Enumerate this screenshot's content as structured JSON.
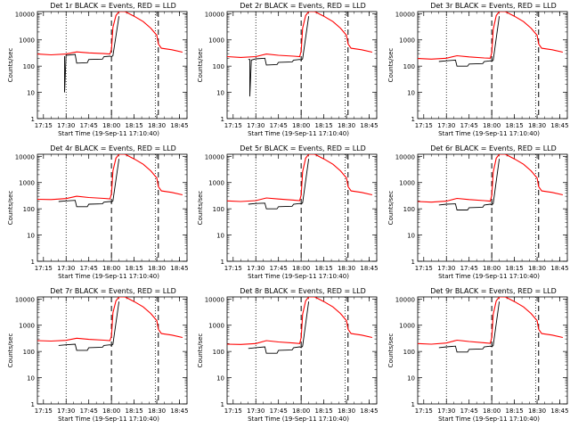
{
  "chart_data": [
    {
      "type": "line",
      "title": "Det 1r BLACK = Events, RED = LLD",
      "xlabel": "Start Time (19-Sep-11 17:10:40)",
      "ylabel": "Counts/sec",
      "yscale": "log",
      "ylim": [
        1,
        12000
      ],
      "xlim": [
        "17:11",
        "18:50"
      ],
      "x_ticks": [
        "17:15",
        "17:30",
        "17:45",
        "18:00",
        "18:15",
        "18:30",
        "18:45"
      ],
      "y_ticks": [
        "1",
        "10",
        "100",
        "1000",
        "10000"
      ],
      "vlines_dotted": [
        "17:30",
        "18:29"
      ],
      "vlines_dashed": [
        "18:00",
        "18:31"
      ],
      "series": [
        {
          "color": "#000000",
          "x": [
            "17:11",
            "17:28",
            "17:29",
            "17:29",
            "17:30",
            "17:36",
            "17:37",
            "17:44",
            "17:45",
            "17:54",
            "17:55",
            "17:59",
            "18:00",
            "18:01",
            "18:05"
          ],
          "y": [
            null,
            null,
            240,
            10,
            260,
            280,
            130,
            135,
            180,
            185,
            230,
            240,
            230,
            250,
            8000
          ]
        },
        {
          "color": "#ff0000",
          "x": [
            "17:11",
            "17:20",
            "17:30",
            "17:37",
            "17:45",
            "17:55",
            "17:59",
            "18:00",
            "18:01",
            "18:03",
            "18:05",
            "18:09",
            "18:15",
            "18:21",
            "18:26",
            "18:30",
            "18:31",
            "18:33",
            "18:40",
            "18:47"
          ],
          "y": [
            290,
            270,
            290,
            350,
            320,
            300,
            290,
            450,
            3000,
            8500,
            12000,
            12000,
            8000,
            5000,
            2800,
            1500,
            700,
            480,
            420,
            340
          ]
        }
      ]
    },
    {
      "type": "line",
      "title": "Det 2r BLACK = Events, RED = LLD",
      "xlabel": "Start Time (19-Sep-11 17:10:40)",
      "ylabel": "Counts/sec",
      "yscale": "log",
      "ylim": [
        1,
        12000
      ],
      "xlim": [
        "17:11",
        "18:50"
      ],
      "x_ticks": [
        "17:15",
        "17:30",
        "17:45",
        "18:00",
        "18:15",
        "18:30",
        "18:45"
      ],
      "y_ticks": [
        "1",
        "10",
        "100",
        "1000",
        "10000"
      ],
      "vlines_dotted": [
        "17:30",
        "18:29"
      ],
      "vlines_dashed": [
        "18:00",
        "18:31"
      ],
      "series": [
        {
          "color": "#000000",
          "x": [
            "17:25",
            "17:26",
            "17:26",
            "17:27",
            "17:30",
            "17:36",
            "17:37",
            "17:44",
            "17:45",
            "17:54",
            "17:55",
            "17:59",
            "18:00",
            "18:01",
            "18:05"
          ],
          "y": [
            180,
            180,
            7,
            170,
            190,
            200,
            110,
            115,
            140,
            145,
            170,
            180,
            170,
            190,
            8000
          ]
        },
        {
          "color": "#ff0000",
          "x": [
            "17:11",
            "17:20",
            "17:30",
            "17:37",
            "17:45",
            "17:55",
            "17:59",
            "18:00",
            "18:01",
            "18:03",
            "18:05",
            "18:09",
            "18:15",
            "18:21",
            "18:26",
            "18:30",
            "18:31",
            "18:33",
            "18:40",
            "18:47"
          ],
          "y": [
            230,
            215,
            230,
            290,
            260,
            240,
            230,
            380,
            2800,
            8500,
            12000,
            12000,
            8000,
            5000,
            2800,
            1500,
            700,
            480,
            420,
            340
          ]
        }
      ]
    },
    {
      "type": "line",
      "title": "Det 3r BLACK = Events, RED = LLD",
      "xlabel": "Start Time (19-Sep-11 17:10:40)",
      "ylabel": "Counts/sec",
      "yscale": "log",
      "ylim": [
        1,
        12000
      ],
      "xlim": [
        "17:11",
        "18:50"
      ],
      "x_ticks": [
        "17:15",
        "17:30",
        "17:45",
        "18:00",
        "18:15",
        "18:30",
        "18:45"
      ],
      "y_ticks": [
        "1",
        "10",
        "100",
        "1000",
        "10000"
      ],
      "vlines_dotted": [
        "17:30",
        "18:29"
      ],
      "vlines_dashed": [
        "18:00",
        "18:31"
      ],
      "series": [
        {
          "color": "#000000",
          "x": [
            "17:25",
            "17:30",
            "17:36",
            "17:37",
            "17:44",
            "17:45",
            "17:54",
            "17:55",
            "17:59",
            "18:00",
            "18:01",
            "18:05"
          ],
          "y": [
            150,
            160,
            170,
            100,
            100,
            120,
            125,
            150,
            160,
            150,
            170,
            8000
          ]
        },
        {
          "color": "#ff0000",
          "x": [
            "17:11",
            "17:20",
            "17:30",
            "17:37",
            "17:45",
            "17:55",
            "17:59",
            "18:00",
            "18:01",
            "18:03",
            "18:05",
            "18:09",
            "18:15",
            "18:21",
            "18:26",
            "18:30",
            "18:31",
            "18:33",
            "18:40",
            "18:47"
          ],
          "y": [
            195,
            185,
            200,
            250,
            225,
            205,
            200,
            330,
            2500,
            8500,
            12000,
            12000,
            8000,
            5000,
            2800,
            1500,
            700,
            480,
            420,
            340
          ]
        }
      ]
    },
    {
      "type": "line",
      "title": "Det 4r BLACK = Events, RED = LLD",
      "xlabel": "Start Time (19-Sep-11 17:10:40)",
      "ylabel": "Counts/sec",
      "yscale": "log",
      "ylim": [
        1,
        12000
      ],
      "xlim": [
        "17:11",
        "18:50"
      ],
      "x_ticks": [
        "17:15",
        "17:30",
        "17:45",
        "18:00",
        "18:15",
        "18:30",
        "18:45"
      ],
      "y_ticks": [
        "1",
        "10",
        "100",
        "1000",
        "10000"
      ],
      "vlines_dotted": [
        "17:30",
        "18:29"
      ],
      "vlines_dashed": [
        "18:00",
        "18:31"
      ],
      "series": [
        {
          "color": "#000000",
          "x": [
            "17:25",
            "17:30",
            "17:36",
            "17:37",
            "17:44",
            "17:45",
            "17:54",
            "17:55",
            "17:59",
            "18:00",
            "18:01",
            "18:05"
          ],
          "y": [
            190,
            200,
            210,
            120,
            120,
            150,
            155,
            180,
            190,
            180,
            200,
            8000
          ]
        },
        {
          "color": "#ff0000",
          "x": [
            "17:11",
            "17:20",
            "17:30",
            "17:37",
            "17:45",
            "17:55",
            "17:59",
            "18:00",
            "18:01",
            "18:03",
            "18:05",
            "18:09",
            "18:15",
            "18:21",
            "18:26",
            "18:30",
            "18:31",
            "18:33",
            "18:40",
            "18:47"
          ],
          "y": [
            230,
            225,
            245,
            300,
            270,
            250,
            240,
            380,
            2800,
            8500,
            12000,
            12000,
            8000,
            5000,
            2800,
            1500,
            700,
            480,
            420,
            340
          ]
        }
      ]
    },
    {
      "type": "line",
      "title": "Det 5r BLACK = Events, RED = LLD",
      "xlabel": "Start Time (19-Sep-11 17:10:40)",
      "ylabel": "Counts/sec",
      "yscale": "log",
      "ylim": [
        1,
        12000
      ],
      "xlim": [
        "17:11",
        "18:50"
      ],
      "x_ticks": [
        "17:15",
        "17:30",
        "17:45",
        "18:00",
        "18:15",
        "18:30",
        "18:45"
      ],
      "y_ticks": [
        "1",
        "10",
        "100",
        "1000",
        "10000"
      ],
      "vlines_dotted": [
        "17:30",
        "18:29"
      ],
      "vlines_dashed": [
        "18:00",
        "18:31"
      ],
      "series": [
        {
          "color": "#000000",
          "x": [
            "17:25",
            "17:30",
            "17:36",
            "17:37",
            "17:44",
            "17:45",
            "17:54",
            "17:55",
            "17:59",
            "18:00",
            "18:01",
            "18:05"
          ],
          "y": [
            150,
            160,
            165,
            100,
            100,
            120,
            125,
            150,
            160,
            150,
            170,
            8000
          ]
        },
        {
          "color": "#ff0000",
          "x": [
            "17:11",
            "17:20",
            "17:30",
            "17:37",
            "17:45",
            "17:55",
            "17:59",
            "18:00",
            "18:01",
            "18:03",
            "18:05",
            "18:09",
            "18:15",
            "18:21",
            "18:26",
            "18:30",
            "18:31",
            "18:33",
            "18:40",
            "18:47"
          ],
          "y": [
            200,
            190,
            205,
            260,
            235,
            215,
            205,
            340,
            2600,
            8500,
            12000,
            12000,
            8000,
            5000,
            2800,
            1500,
            700,
            480,
            420,
            340
          ]
        }
      ]
    },
    {
      "type": "line",
      "title": "Det 6r BLACK = Events, RED = LLD",
      "xlabel": "Start Time (19-Sep-11 17:10:40)",
      "ylabel": "Counts/sec",
      "yscale": "log",
      "ylim": [
        1,
        12000
      ],
      "xlim": [
        "17:11",
        "18:50"
      ],
      "x_ticks": [
        "17:15",
        "17:30",
        "17:45",
        "18:00",
        "18:15",
        "18:30",
        "18:45"
      ],
      "y_ticks": [
        "1",
        "10",
        "100",
        "1000",
        "10000"
      ],
      "vlines_dotted": [
        "17:30",
        "18:29"
      ],
      "vlines_dashed": [
        "18:00",
        "18:31"
      ],
      "series": [
        {
          "color": "#000000",
          "x": [
            "17:25",
            "17:30",
            "17:36",
            "17:37",
            "17:44",
            "17:45",
            "17:54",
            "17:55",
            "17:59",
            "18:00",
            "18:01",
            "18:05"
          ],
          "y": [
            140,
            150,
            155,
            90,
            90,
            110,
            115,
            140,
            150,
            140,
            160,
            8000
          ]
        },
        {
          "color": "#ff0000",
          "x": [
            "17:11",
            "17:20",
            "17:30",
            "17:37",
            "17:45",
            "17:55",
            "17:59",
            "18:00",
            "18:01",
            "18:03",
            "18:05",
            "18:09",
            "18:15",
            "18:21",
            "18:26",
            "18:30",
            "18:31",
            "18:33",
            "18:40",
            "18:47"
          ],
          "y": [
            190,
            180,
            195,
            250,
            225,
            205,
            195,
            330,
            2500,
            8500,
            12000,
            12000,
            8000,
            5000,
            2800,
            1500,
            700,
            480,
            420,
            340
          ]
        }
      ]
    },
    {
      "type": "line",
      "title": "Det 7r BLACK = Events, RED = LLD",
      "xlabel": "Start Time (19-Sep-11 17:10:40)",
      "ylabel": "Counts/sec",
      "yscale": "log",
      "ylim": [
        1,
        12000
      ],
      "xlim": [
        "17:11",
        "18:50"
      ],
      "x_ticks": [
        "17:15",
        "17:30",
        "17:45",
        "18:00",
        "18:15",
        "18:30",
        "18:45"
      ],
      "y_ticks": [
        "1",
        "10",
        "100",
        "1000",
        "10000"
      ],
      "vlines_dotted": [
        "17:30",
        "18:29"
      ],
      "vlines_dashed": [
        "18:00",
        "18:31"
      ],
      "series": [
        {
          "color": "#000000",
          "x": [
            "17:25",
            "17:30",
            "17:36",
            "17:37",
            "17:44",
            "17:45",
            "17:54",
            "17:55",
            "17:59",
            "18:00",
            "18:01",
            "18:05"
          ],
          "y": [
            170,
            180,
            190,
            110,
            110,
            140,
            145,
            170,
            180,
            170,
            190,
            8000
          ]
        },
        {
          "color": "#ff0000",
          "x": [
            "17:11",
            "17:20",
            "17:30",
            "17:37",
            "17:45",
            "17:55",
            "17:59",
            "18:00",
            "18:01",
            "18:03",
            "18:05",
            "18:09",
            "18:15",
            "18:21",
            "18:26",
            "18:30",
            "18:31",
            "18:33",
            "18:40",
            "18:47"
          ],
          "y": [
            260,
            250,
            265,
            320,
            290,
            270,
            260,
            400,
            3000,
            8500,
            12000,
            12000,
            8000,
            5000,
            2800,
            1500,
            700,
            480,
            420,
            340
          ]
        }
      ]
    },
    {
      "type": "line",
      "title": "Det 8r BLACK = Events, RED = LLD",
      "xlabel": "Start Time (19-Sep-11 17:10:40)",
      "ylabel": "Counts/sec",
      "yscale": "log",
      "ylim": [
        1,
        12000
      ],
      "xlim": [
        "17:11",
        "18:50"
      ],
      "x_ticks": [
        "17:15",
        "17:30",
        "17:45",
        "18:00",
        "18:15",
        "18:30",
        "18:45"
      ],
      "y_ticks": [
        "1",
        "10",
        "100",
        "1000",
        "10000"
      ],
      "vlines_dotted": [
        "17:30",
        "18:29"
      ],
      "vlines_dashed": [
        "18:00",
        "18:31"
      ],
      "series": [
        {
          "color": "#000000",
          "x": [
            "17:25",
            "17:30",
            "17:36",
            "17:37",
            "17:44",
            "17:45",
            "17:54",
            "17:55",
            "17:59",
            "18:00",
            "18:01",
            "18:05"
          ],
          "y": [
            130,
            140,
            150,
            85,
            85,
            110,
            115,
            140,
            150,
            140,
            160,
            8000
          ]
        },
        {
          "color": "#ff0000",
          "x": [
            "17:11",
            "17:20",
            "17:30",
            "17:37",
            "17:45",
            "17:55",
            "17:59",
            "18:00",
            "18:01",
            "18:03",
            "18:05",
            "18:09",
            "18:15",
            "18:21",
            "18:26",
            "18:30",
            "18:31",
            "18:33",
            "18:40",
            "18:47"
          ],
          "y": [
            190,
            185,
            200,
            260,
            230,
            210,
            200,
            340,
            2600,
            8500,
            12000,
            12000,
            8000,
            5000,
            2800,
            1500,
            700,
            480,
            420,
            340
          ]
        }
      ]
    },
    {
      "type": "line",
      "title": "Det 9r BLACK = Events, RED = LLD",
      "xlabel": "Start Time (19-Sep-11 17:10:40)",
      "ylabel": "Counts/sec",
      "yscale": "log",
      "ylim": [
        1,
        12000
      ],
      "xlim": [
        "17:11",
        "18:50"
      ],
      "x_ticks": [
        "17:15",
        "17:30",
        "17:45",
        "18:00",
        "18:15",
        "18:30",
        "18:45"
      ],
      "y_ticks": [
        "1",
        "10",
        "100",
        "1000",
        "10000"
      ],
      "vlines_dotted": [
        "17:30",
        "18:29"
      ],
      "vlines_dashed": [
        "18:00",
        "18:31"
      ],
      "series": [
        {
          "color": "#000000",
          "x": [
            "17:25",
            "17:30",
            "17:36",
            "17:37",
            "17:44",
            "17:45",
            "17:54",
            "17:55",
            "17:59",
            "18:00",
            "18:01",
            "18:05"
          ],
          "y": [
            140,
            150,
            160,
            95,
            95,
            120,
            125,
            150,
            160,
            150,
            170,
            8000
          ]
        },
        {
          "color": "#ff0000",
          "x": [
            "17:11",
            "17:20",
            "17:30",
            "17:37",
            "17:45",
            "17:55",
            "17:59",
            "18:00",
            "18:01",
            "18:03",
            "18:05",
            "18:09",
            "18:15",
            "18:21",
            "18:26",
            "18:30",
            "18:31",
            "18:33",
            "18:40",
            "18:47"
          ],
          "y": [
            200,
            190,
            210,
            270,
            240,
            215,
            205,
            350,
            2600,
            8500,
            12000,
            12000,
            8000,
            5000,
            2800,
            1500,
            700,
            480,
            420,
            340
          ]
        }
      ]
    }
  ]
}
